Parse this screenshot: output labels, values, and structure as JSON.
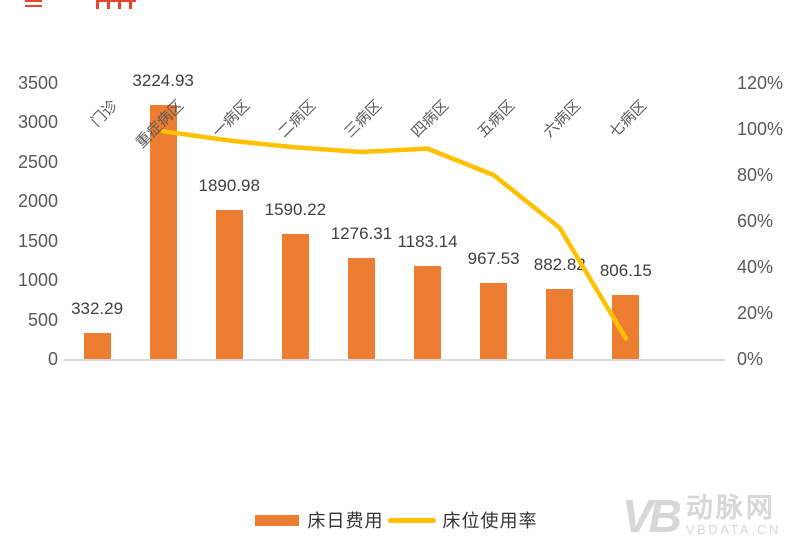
{
  "chart_data": {
    "type": "bar",
    "subtype": "combo-bar-line",
    "title": "",
    "categories": [
      "门诊",
      "重症病区",
      "一病区",
      "二病区",
      "三病区",
      "四病区",
      "五病区",
      "六病区",
      "七病区"
    ],
    "series": [
      {
        "name": "床日费用",
        "type": "bar",
        "axis": "left",
        "color": "#ec7d31",
        "values": [
          332.29,
          3224.93,
          1890.98,
          1590.22,
          1276.31,
          1183.14,
          967.53,
          882.82,
          806.15
        ],
        "value_labels": [
          "332.29",
          "3224.93",
          "1890.98",
          "1590.22",
          "1276.31",
          "1183.14",
          "967.53",
          "882.82",
          "806.15"
        ]
      },
      {
        "name": "床位使用率",
        "type": "line",
        "axis": "right",
        "color": "#ffc000",
        "values_percent": [
          null,
          99,
          95,
          92,
          90,
          91.5,
          80,
          57,
          9
        ]
      }
    ],
    "left_axis": {
      "min": 0,
      "max": 3500,
      "step": 500,
      "tick_labels": [
        "0",
        "500",
        "1000",
        "1500",
        "2000",
        "2500",
        "3000",
        "3500"
      ]
    },
    "right_axis": {
      "min": 0,
      "max": 120,
      "step": 20,
      "tick_labels": [
        "0%",
        "20%",
        "40%",
        "60%",
        "80%",
        "100%",
        "120%"
      ]
    },
    "gridlines": false,
    "legend_position": "bottom-center",
    "axis_line_color": "#d9d9d9"
  },
  "legend": {
    "items": [
      {
        "label": "床日费用",
        "swatch": "bar",
        "color": "#ec7d31"
      },
      {
        "label": "床位使用率",
        "swatch": "line",
        "color": "#ffc000"
      }
    ]
  },
  "watermark": {
    "monogram": "VB",
    "brand": "动脉网",
    "site": "VBDATA.CN",
    "color": "#d7d7d7"
  }
}
